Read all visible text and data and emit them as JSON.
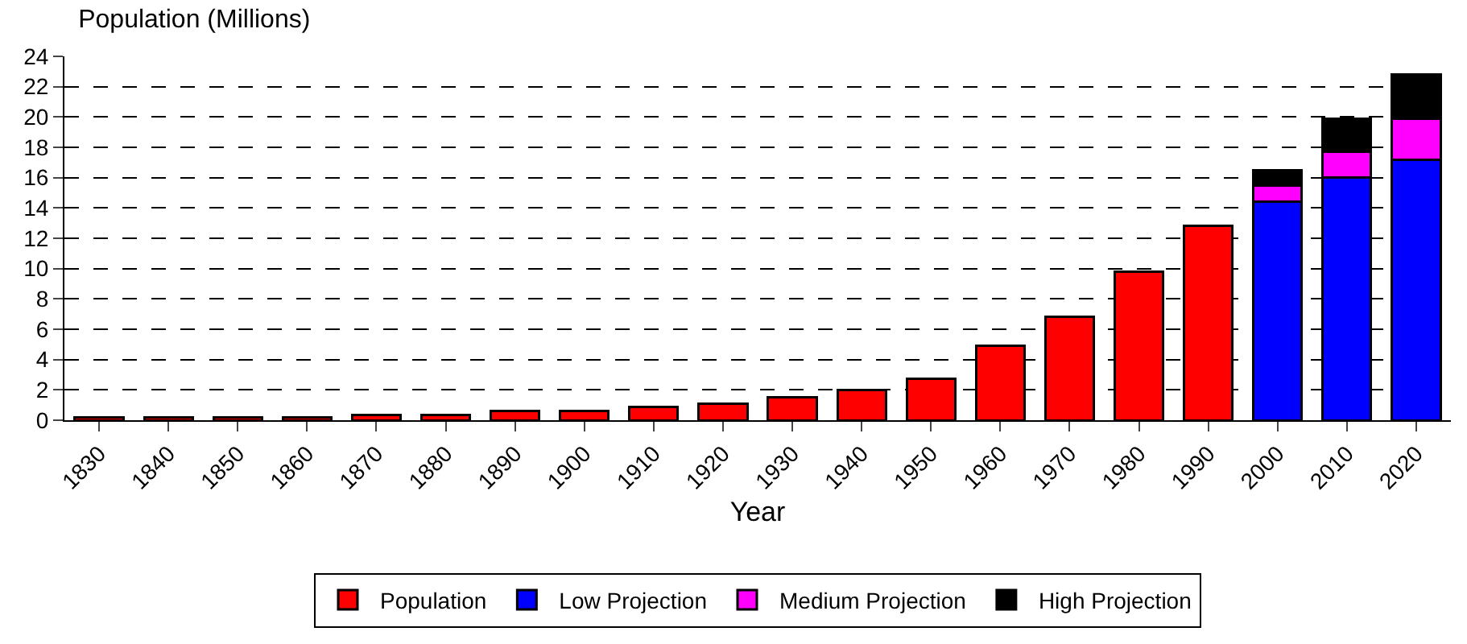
{
  "chart_data": {
    "type": "bar",
    "title": "Population (Millions)",
    "xlabel": "Year",
    "stacked": true,
    "categories": [
      "1830",
      "1840",
      "1850",
      "1860",
      "1870",
      "1880",
      "1890",
      "1900",
      "1910",
      "1920",
      "1930",
      "1940",
      "1950",
      "1960",
      "1970",
      "1980",
      "1990",
      "2000",
      "2010",
      "2020"
    ],
    "series": [
      {
        "name": "Population",
        "color": "#ff0000",
        "values": [
          0.2,
          0.2,
          0.2,
          0.2,
          0.35,
          0.35,
          0.6,
          0.6,
          0.9,
          1.1,
          1.5,
          2.0,
          2.75,
          4.9,
          6.8,
          9.8,
          12.8,
          null,
          null,
          null
        ]
      },
      {
        "name": "Low Projection",
        "color": "#0000ff",
        "values": [
          null,
          null,
          null,
          null,
          null,
          null,
          null,
          null,
          null,
          null,
          null,
          null,
          null,
          null,
          null,
          null,
          null,
          14.4,
          16.0,
          17.2
        ]
      },
      {
        "name": "Medium Projection",
        "color": "#ff00ff",
        "values": [
          null,
          null,
          null,
          null,
          null,
          null,
          null,
          null,
          null,
          null,
          null,
          null,
          null,
          null,
          null,
          null,
          null,
          1.1,
          1.7,
          2.7
        ]
      },
      {
        "name": "High Projection",
        "color": "#000000",
        "values": [
          null,
          null,
          null,
          null,
          null,
          null,
          null,
          null,
          null,
          null,
          null,
          null,
          null,
          null,
          null,
          null,
          null,
          1.0,
          2.2,
          2.9
        ]
      }
    ],
    "ylim": [
      0,
      24
    ],
    "yticks": [
      0,
      2,
      4,
      6,
      8,
      10,
      12,
      14,
      16,
      18,
      20,
      22,
      24
    ],
    "grid": "y",
    "legend": "bottom"
  }
}
